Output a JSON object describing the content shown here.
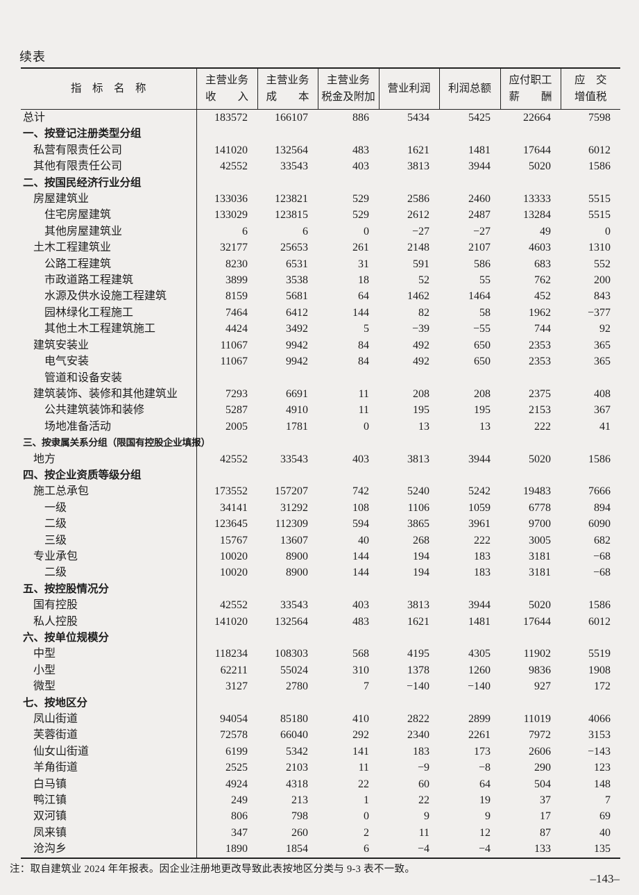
{
  "page": {
    "continued_label": "续表",
    "note": "注：取自建筑业 2024 年年报表。因企业注册地更改导致此表按地区分类与 9-3 表不一致。",
    "page_number": "–143–"
  },
  "table": {
    "columns": [
      {
        "id": "indicator",
        "line1": "指　标　名　称",
        "line2": ""
      },
      {
        "id": "revenue",
        "line1": "主营业务",
        "line2": "收　　入"
      },
      {
        "id": "cost",
        "line1": "主营业务",
        "line2": "成　　本"
      },
      {
        "id": "tax",
        "line1": "主营业务",
        "line2": "税金及附加"
      },
      {
        "id": "op-profit",
        "line1": "营业利润",
        "line2": ""
      },
      {
        "id": "total-profit",
        "line1": "利润总额",
        "line2": ""
      },
      {
        "id": "payroll",
        "line1": "应付职工",
        "line2": "薪　　酬"
      },
      {
        "id": "vat",
        "line1": "应　交",
        "line2": "增值税"
      }
    ],
    "rows": [
      {
        "label": "总计",
        "indent": 0,
        "section": false,
        "values": [
          "183572",
          "166107",
          "886",
          "5434",
          "5425",
          "22664",
          "7598"
        ]
      },
      {
        "label": "一、按登记注册类型分组",
        "indent": 0,
        "section": true,
        "values": []
      },
      {
        "label": "私营有限责任公司",
        "indent": 1,
        "section": false,
        "values": [
          "141020",
          "132564",
          "483",
          "1621",
          "1481",
          "17644",
          "6012"
        ]
      },
      {
        "label": "其他有限责任公司",
        "indent": 1,
        "section": false,
        "values": [
          "42552",
          "33543",
          "403",
          "3813",
          "3944",
          "5020",
          "1586"
        ]
      },
      {
        "label": "二、按国民经济行业分组",
        "indent": 0,
        "section": true,
        "values": []
      },
      {
        "label": "房屋建筑业",
        "indent": 1,
        "section": false,
        "values": [
          "133036",
          "123821",
          "529",
          "2586",
          "2460",
          "13333",
          "5515"
        ]
      },
      {
        "label": "住宅房屋建筑",
        "indent": 2,
        "section": false,
        "values": [
          "133029",
          "123815",
          "529",
          "2612",
          "2487",
          "13284",
          "5515"
        ]
      },
      {
        "label": "其他房屋建筑业",
        "indent": 2,
        "section": false,
        "values": [
          "6",
          "6",
          "0",
          "−27",
          "−27",
          "49",
          "0"
        ]
      },
      {
        "label": "土木工程建筑业",
        "indent": 1,
        "section": false,
        "values": [
          "32177",
          "25653",
          "261",
          "2148",
          "2107",
          "4603",
          "1310"
        ]
      },
      {
        "label": "公路工程建筑",
        "indent": 2,
        "section": false,
        "values": [
          "8230",
          "6531",
          "31",
          "591",
          "586",
          "683",
          "552"
        ]
      },
      {
        "label": "市政道路工程建筑",
        "indent": 2,
        "section": false,
        "values": [
          "3899",
          "3538",
          "18",
          "52",
          "55",
          "762",
          "200"
        ]
      },
      {
        "label": "水源及供水设施工程建筑",
        "indent": 2,
        "section": false,
        "values": [
          "8159",
          "5681",
          "64",
          "1462",
          "1464",
          "452",
          "843"
        ]
      },
      {
        "label": "园林绿化工程施工",
        "indent": 2,
        "section": false,
        "values": [
          "7464",
          "6412",
          "144",
          "82",
          "58",
          "1962",
          "−377"
        ]
      },
      {
        "label": "其他土木工程建筑施工",
        "indent": 2,
        "section": false,
        "values": [
          "4424",
          "3492",
          "5",
          "−39",
          "−55",
          "744",
          "92"
        ]
      },
      {
        "label": "建筑安装业",
        "indent": 1,
        "section": false,
        "values": [
          "11067",
          "9942",
          "84",
          "492",
          "650",
          "2353",
          "365"
        ]
      },
      {
        "label": "电气安装",
        "indent": 2,
        "section": false,
        "values": [
          "11067",
          "9942",
          "84",
          "492",
          "650",
          "2353",
          "365"
        ]
      },
      {
        "label": "管道和设备安装",
        "indent": 2,
        "section": false,
        "values": []
      },
      {
        "label": "建筑装饰、装修和其他建筑业",
        "indent": 1,
        "section": false,
        "values": [
          "7293",
          "6691",
          "11",
          "208",
          "208",
          "2375",
          "408"
        ]
      },
      {
        "label": "公共建筑装饰和装修",
        "indent": 2,
        "section": false,
        "values": [
          "5287",
          "4910",
          "11",
          "195",
          "195",
          "2153",
          "367"
        ]
      },
      {
        "label": "场地准备活动",
        "indent": 2,
        "section": false,
        "values": [
          "2005",
          "1781",
          "0",
          "13",
          "13",
          "222",
          "41"
        ]
      },
      {
        "label": "三、按隶属关系分组（限国有控股企业填报）",
        "indent": 0,
        "section": true,
        "values": []
      },
      {
        "label": "地方",
        "indent": 1,
        "section": false,
        "values": [
          "42552",
          "33543",
          "403",
          "3813",
          "3944",
          "5020",
          "1586"
        ]
      },
      {
        "label": "四、按企业资质等级分组",
        "indent": 0,
        "section": true,
        "values": []
      },
      {
        "label": "施工总承包",
        "indent": 1,
        "section": false,
        "values": [
          "173552",
          "157207",
          "742",
          "5240",
          "5242",
          "19483",
          "7666"
        ]
      },
      {
        "label": "一级",
        "indent": 2,
        "section": false,
        "values": [
          "34141",
          "31292",
          "108",
          "1106",
          "1059",
          "6778",
          "894"
        ]
      },
      {
        "label": "二级",
        "indent": 2,
        "section": false,
        "values": [
          "123645",
          "112309",
          "594",
          "3865",
          "3961",
          "9700",
          "6090"
        ]
      },
      {
        "label": "三级",
        "indent": 2,
        "section": false,
        "values": [
          "15767",
          "13607",
          "40",
          "268",
          "222",
          "3005",
          "682"
        ]
      },
      {
        "label": "专业承包",
        "indent": 1,
        "section": false,
        "values": [
          "10020",
          "8900",
          "144",
          "194",
          "183",
          "3181",
          "−68"
        ]
      },
      {
        "label": "二级",
        "indent": 2,
        "section": false,
        "values": [
          "10020",
          "8900",
          "144",
          "194",
          "183",
          "3181",
          "−68"
        ]
      },
      {
        "label": "五、按控股情况分",
        "indent": 0,
        "section": true,
        "values": []
      },
      {
        "label": "国有控股",
        "indent": 1,
        "section": false,
        "values": [
          "42552",
          "33543",
          "403",
          "3813",
          "3944",
          "5020",
          "1586"
        ]
      },
      {
        "label": "私人控股",
        "indent": 1,
        "section": false,
        "values": [
          "141020",
          "132564",
          "483",
          "1621",
          "1481",
          "17644",
          "6012"
        ]
      },
      {
        "label": "六、按单位规模分",
        "indent": 0,
        "section": true,
        "values": []
      },
      {
        "label": "中型",
        "indent": 1,
        "section": false,
        "values": [
          "118234",
          "108303",
          "568",
          "4195",
          "4305",
          "11902",
          "5519"
        ]
      },
      {
        "label": "小型",
        "indent": 1,
        "section": false,
        "values": [
          "62211",
          "55024",
          "310",
          "1378",
          "1260",
          "9836",
          "1908"
        ]
      },
      {
        "label": "微型",
        "indent": 1,
        "section": false,
        "values": [
          "3127",
          "2780",
          "7",
          "−140",
          "−140",
          "927",
          "172"
        ]
      },
      {
        "label": "七、按地区分",
        "indent": 0,
        "section": true,
        "values": []
      },
      {
        "label": "凤山街道",
        "indent": 1,
        "section": false,
        "values": [
          "94054",
          "85180",
          "410",
          "2822",
          "2899",
          "11019",
          "4066"
        ]
      },
      {
        "label": "芙蓉街道",
        "indent": 1,
        "section": false,
        "values": [
          "72578",
          "66040",
          "292",
          "2340",
          "2261",
          "7972",
          "3153"
        ]
      },
      {
        "label": "仙女山街道",
        "indent": 1,
        "section": false,
        "values": [
          "6199",
          "5342",
          "141",
          "183",
          "173",
          "2606",
          "−143"
        ]
      },
      {
        "label": "羊角街道",
        "indent": 1,
        "section": false,
        "values": [
          "2525",
          "2103",
          "11",
          "−9",
          "−8",
          "290",
          "123"
        ]
      },
      {
        "label": "白马镇",
        "indent": 1,
        "section": false,
        "values": [
          "4924",
          "4318",
          "22",
          "60",
          "64",
          "504",
          "148"
        ]
      },
      {
        "label": "鸭江镇",
        "indent": 1,
        "section": false,
        "values": [
          "249",
          "213",
          "1",
          "22",
          "19",
          "37",
          "7"
        ]
      },
      {
        "label": "双河镇",
        "indent": 1,
        "section": false,
        "values": [
          "806",
          "798",
          "0",
          "9",
          "9",
          "17",
          "69"
        ]
      },
      {
        "label": "凤来镇",
        "indent": 1,
        "section": false,
        "values": [
          "347",
          "260",
          "2",
          "11",
          "12",
          "87",
          "40"
        ]
      },
      {
        "label": "沧沟乡",
        "indent": 1,
        "section": false,
        "values": [
          "1890",
          "1854",
          "6",
          "−4",
          "−4",
          "133",
          "135"
        ]
      }
    ]
  }
}
